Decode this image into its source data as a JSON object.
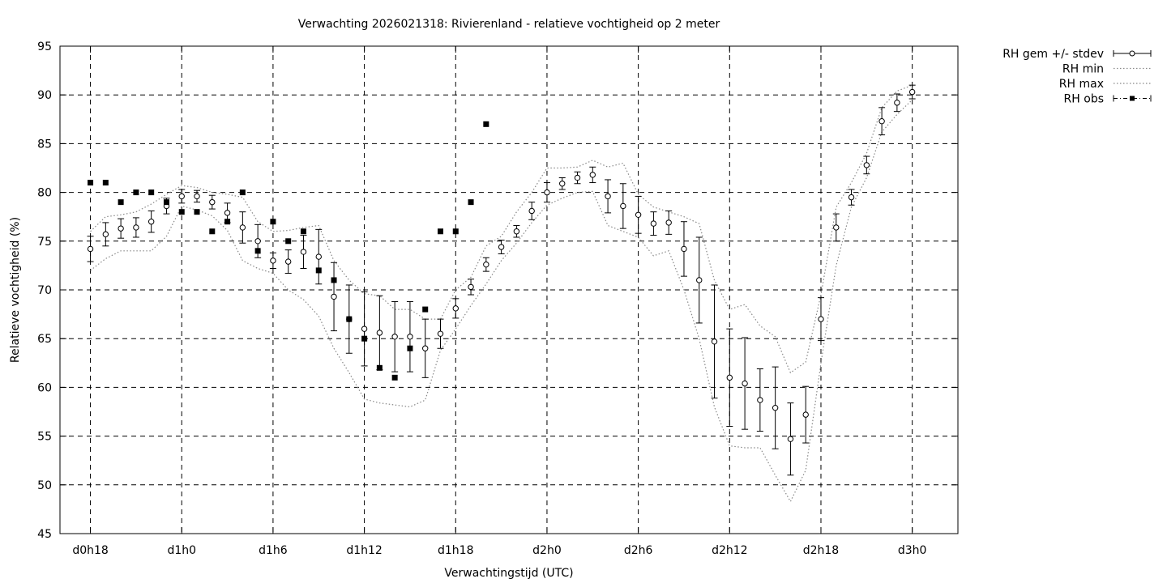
{
  "chart_data": {
    "type": "scatter",
    "title": "Verwachting 2026021318: Rivierenland - relatieve vochtigheid op 2 meter",
    "xlabel": "Verwachtingstijd (UTC)",
    "ylabel": "Relatieve vochtigheid (%)",
    "xlim": [
      16,
      75
    ],
    "ylim": [
      45,
      95
    ],
    "grid": true,
    "legend_position": "outside-top-right",
    "x_ticks": [
      {
        "value": 18,
        "label": "d0h18"
      },
      {
        "value": 24,
        "label": "d1h0"
      },
      {
        "value": 30,
        "label": "d1h6"
      },
      {
        "value": 36,
        "label": "d1h12"
      },
      {
        "value": 42,
        "label": "d1h18"
      },
      {
        "value": 48,
        "label": "d2h0"
      },
      {
        "value": 54,
        "label": "d2h6"
      },
      {
        "value": 60,
        "label": "d2h12"
      },
      {
        "value": 66,
        "label": "d2h18"
      },
      {
        "value": 72,
        "label": "d3h0"
      }
    ],
    "y_ticks": [
      45,
      50,
      55,
      60,
      65,
      70,
      75,
      80,
      85,
      90,
      95
    ],
    "legend": [
      {
        "label": "RH gem +/- stdev",
        "style": "errorbar-open-circle"
      },
      {
        "label": "RH min",
        "style": "dotted"
      },
      {
        "label": "RH max",
        "style": "dotted"
      },
      {
        "label": "RH obs",
        "style": "filled-square-dashdot"
      }
    ],
    "series": [
      {
        "name": "RH gem +/- stdev",
        "x": [
          18,
          19,
          20,
          21,
          22,
          23,
          24,
          25,
          26,
          27,
          28,
          29,
          30,
          31,
          32,
          33,
          34,
          35,
          36,
          37,
          38,
          39,
          40,
          41,
          42,
          43,
          44,
          45,
          46,
          47,
          48,
          49,
          50,
          51,
          52,
          53,
          54,
          55,
          56,
          57,
          58,
          59,
          60,
          61,
          62,
          63,
          64,
          65,
          66,
          67,
          68,
          69,
          70,
          71,
          72
        ],
        "mean": [
          74.2,
          75.7,
          76.3,
          76.4,
          77.0,
          78.6,
          79.6,
          79.6,
          79.0,
          77.9,
          76.4,
          75.0,
          73.0,
          72.9,
          73.9,
          73.4,
          69.3,
          67.0,
          66.0,
          65.6,
          65.2,
          65.2,
          64.0,
          65.5,
          68.1,
          70.3,
          72.6,
          74.4,
          76.0,
          78.1,
          80.0,
          80.9,
          81.5,
          81.8,
          79.6,
          78.6,
          77.7,
          76.8,
          76.9,
          74.2,
          71.0,
          64.7,
          61.0,
          60.4,
          58.7,
          57.9,
          54.7,
          57.2,
          67.0,
          76.4,
          79.5,
          82.8,
          87.3,
          89.2,
          90.3
        ],
        "stdev": [
          1.3,
          1.2,
          1.0,
          1.0,
          1.1,
          0.8,
          0.7,
          0.6,
          0.7,
          1.0,
          1.6,
          1.7,
          0.8,
          1.2,
          1.7,
          2.8,
          3.5,
          3.5,
          3.8,
          3.8,
          3.6,
          3.6,
          3.0,
          1.5,
          1.0,
          0.8,
          0.7,
          0.7,
          0.6,
          0.9,
          1.0,
          0.6,
          0.6,
          0.8,
          1.7,
          2.3,
          1.9,
          1.2,
          1.2,
          2.8,
          4.4,
          5.8,
          5.0,
          4.7,
          3.2,
          4.2,
          3.7,
          2.9,
          2.2,
          1.4,
          0.8,
          0.9,
          1.4,
          0.9,
          0.7
        ]
      },
      {
        "name": "RH min",
        "x": [
          18,
          19,
          20,
          21,
          22,
          23,
          24,
          25,
          26,
          27,
          28,
          29,
          30,
          31,
          32,
          33,
          34,
          35,
          36,
          37,
          38,
          39,
          40,
          41,
          42,
          43,
          44,
          45,
          46,
          47,
          48,
          49,
          50,
          51,
          52,
          53,
          54,
          55,
          56,
          57,
          58,
          59,
          60,
          61,
          62,
          63,
          64,
          65,
          66,
          67,
          68,
          69,
          70,
          71,
          72
        ],
        "values": [
          72.0,
          73.2,
          74.0,
          74.0,
          74.0,
          75.5,
          78.6,
          78.2,
          77.6,
          76.1,
          73.0,
          72.2,
          71.7,
          70.0,
          69.0,
          67.3,
          64.0,
          61.5,
          58.8,
          58.4,
          58.2,
          58.0,
          58.7,
          63.8,
          66.0,
          68.4,
          70.6,
          73.0,
          74.8,
          76.9,
          78.7,
          79.4,
          80.0,
          80.1,
          76.6,
          76.0,
          75.4,
          73.5,
          74.0,
          70.0,
          65.0,
          58.0,
          54.0,
          53.8,
          53.8,
          51.0,
          48.3,
          51.5,
          62.5,
          72.5,
          78.5,
          81.5,
          86.2,
          88.0,
          89.5
        ]
      },
      {
        "name": "RH max",
        "x": [
          18,
          19,
          20,
          21,
          22,
          23,
          24,
          25,
          26,
          27,
          28,
          29,
          30,
          31,
          32,
          33,
          34,
          35,
          36,
          37,
          38,
          39,
          40,
          41,
          42,
          43,
          44,
          45,
          46,
          47,
          48,
          49,
          50,
          51,
          52,
          53,
          54,
          55,
          56,
          57,
          58,
          59,
          60,
          61,
          62,
          63,
          64,
          65,
          66,
          67,
          68,
          69,
          70,
          71,
          72
        ],
        "values": [
          76.0,
          77.5,
          77.7,
          78.0,
          78.8,
          79.8,
          80.7,
          80.5,
          80.0,
          79.8,
          79.5,
          77.0,
          76.0,
          76.1,
          76.4,
          76.6,
          73.0,
          71.0,
          69.6,
          69.4,
          68.0,
          68.0,
          67.0,
          67.0,
          70.0,
          71.3,
          74.5,
          75.5,
          78.0,
          80.0,
          82.5,
          82.5,
          82.6,
          83.3,
          82.6,
          83.0,
          79.8,
          78.5,
          78.0,
          77.5,
          76.8,
          71.0,
          68.0,
          68.5,
          66.3,
          65.2,
          61.5,
          62.6,
          69.5,
          78.5,
          81.0,
          84.0,
          88.7,
          90.4,
          91.0
        ]
      },
      {
        "name": "RH obs",
        "x": [
          18,
          19,
          20,
          21,
          22,
          23,
          24,
          25,
          26,
          27,
          28,
          29,
          30,
          31,
          32,
          33,
          34,
          35,
          36,
          37,
          38,
          39,
          40,
          41,
          42,
          43,
          44
        ],
        "values": [
          81,
          81,
          79,
          80,
          80,
          79,
          78,
          78,
          76,
          77,
          80,
          74,
          77,
          75,
          76,
          72,
          71,
          67,
          65,
          62,
          61,
          64,
          68,
          76,
          76,
          79,
          87
        ]
      }
    ]
  }
}
